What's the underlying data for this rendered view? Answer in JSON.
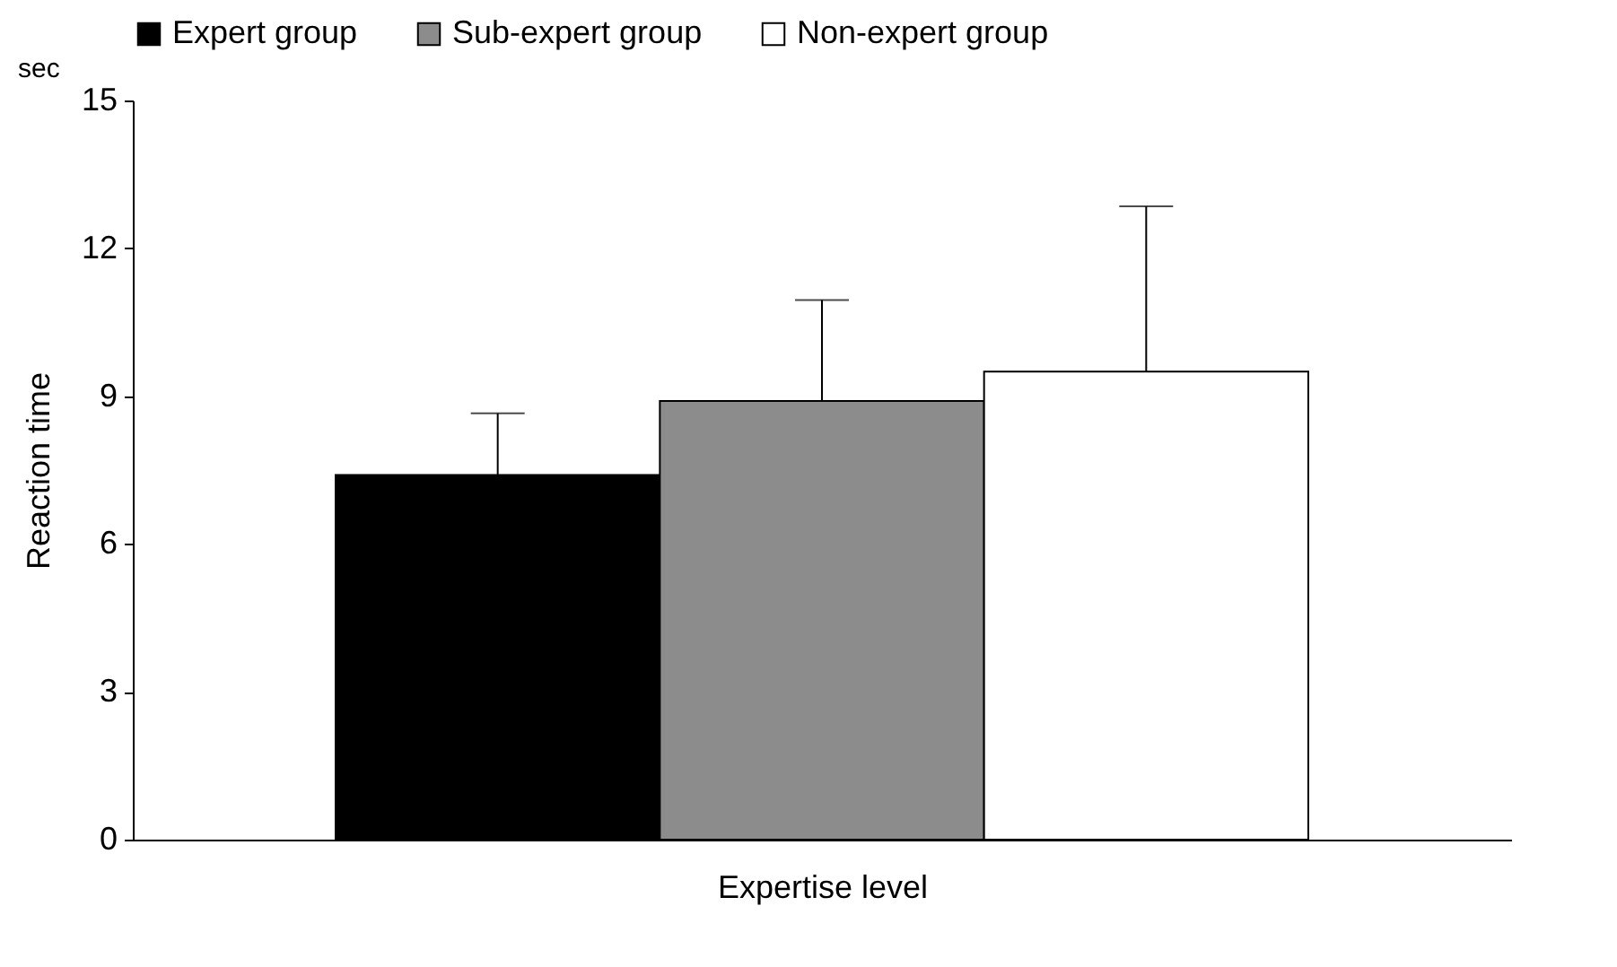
{
  "chart_data": {
    "type": "bar",
    "xlabel": "Expertise level",
    "ylabel": "Reaction time",
    "annotations": [
      "sec"
    ],
    "categories": [
      null
    ],
    "series": [
      {
        "name": "Expert group",
        "color": "#000000",
        "values": [
          7.4
        ],
        "errors": [
          [
            7.4,
            8.65
          ]
        ]
      },
      {
        "name": "Sub-expert group",
        "color": "#8c8c8c",
        "values": [
          8.9
        ],
        "errors": [
          [
            8.9,
            10.95
          ]
        ]
      },
      {
        "name": "Non-expert group",
        "color": "#ffffff",
        "values": [
          9.5
        ],
        "errors": [
          [
            9.5,
            12.85
          ]
        ]
      }
    ],
    "ylim": [
      0,
      15
    ],
    "yticks": [
      0,
      3,
      6,
      9,
      12,
      15
    ],
    "grid": false,
    "legend": "top",
    "tick_labels": "y"
  }
}
